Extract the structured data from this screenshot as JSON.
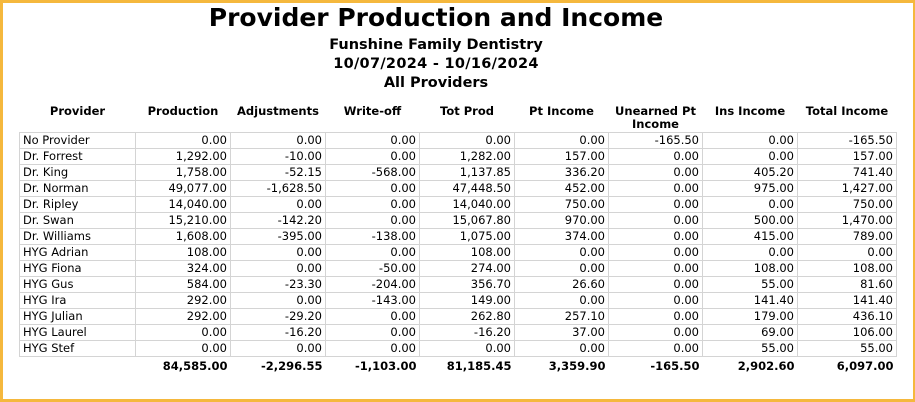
{
  "report": {
    "title": "Provider Production and Income",
    "practice": "Funshine Family Dentistry",
    "date_range": "10/07/2024 - 10/16/2024",
    "providers_filter": "All Providers"
  },
  "table": {
    "columns": [
      "Provider",
      "Production",
      "Adjustments",
      "Write-off",
      "Tot Prod",
      "Pt Income",
      "Unearned Pt Income",
      "Ins Income",
      "Total Income"
    ],
    "rows": [
      [
        "No Provider",
        "0.00",
        "0.00",
        "0.00",
        "0.00",
        "0.00",
        "-165.50",
        "0.00",
        "-165.50"
      ],
      [
        "Dr. Forrest",
        "1,292.00",
        "-10.00",
        "0.00",
        "1,282.00",
        "157.00",
        "0.00",
        "0.00",
        "157.00"
      ],
      [
        "Dr. King",
        "1,758.00",
        "-52.15",
        "-568.00",
        "1,137.85",
        "336.20",
        "0.00",
        "405.20",
        "741.40"
      ],
      [
        "Dr. Norman",
        "49,077.00",
        "-1,628.50",
        "0.00",
        "47,448.50",
        "452.00",
        "0.00",
        "975.00",
        "1,427.00"
      ],
      [
        "Dr. Ripley",
        "14,040.00",
        "0.00",
        "0.00",
        "14,040.00",
        "750.00",
        "0.00",
        "0.00",
        "750.00"
      ],
      [
        "Dr. Swan",
        "15,210.00",
        "-142.20",
        "0.00",
        "15,067.80",
        "970.00",
        "0.00",
        "500.00",
        "1,470.00"
      ],
      [
        "Dr. Williams",
        "1,608.00",
        "-395.00",
        "-138.00",
        "1,075.00",
        "374.00",
        "0.00",
        "415.00",
        "789.00"
      ],
      [
        "HYG Adrian",
        "108.00",
        "0.00",
        "0.00",
        "108.00",
        "0.00",
        "0.00",
        "0.00",
        "0.00"
      ],
      [
        "HYG Fiona",
        "324.00",
        "0.00",
        "-50.00",
        "274.00",
        "0.00",
        "0.00",
        "108.00",
        "108.00"
      ],
      [
        "HYG Gus",
        "584.00",
        "-23.30",
        "-204.00",
        "356.70",
        "26.60",
        "0.00",
        "55.00",
        "81.60"
      ],
      [
        "HYG Ira",
        "292.00",
        "0.00",
        "-143.00",
        "149.00",
        "0.00",
        "0.00",
        "141.40",
        "141.40"
      ],
      [
        "HYG Julian",
        "292.00",
        "-29.20",
        "0.00",
        "262.80",
        "257.10",
        "0.00",
        "179.00",
        "436.10"
      ],
      [
        "HYG Laurel",
        "0.00",
        "-16.20",
        "0.00",
        "-16.20",
        "37.00",
        "0.00",
        "69.00",
        "106.00"
      ],
      [
        "HYG Stef",
        "0.00",
        "0.00",
        "0.00",
        "0.00",
        "0.00",
        "0.00",
        "55.00",
        "55.00"
      ]
    ],
    "totals": [
      "",
      "84,585.00",
      "-2,296.55",
      "-1,103.00",
      "81,185.45",
      "3,359.90",
      "-165.50",
      "2,902.60",
      "6,097.00"
    ]
  },
  "colors": {
    "frame_border": "#F5B83D",
    "grid_line": "#D4D4D4"
  }
}
